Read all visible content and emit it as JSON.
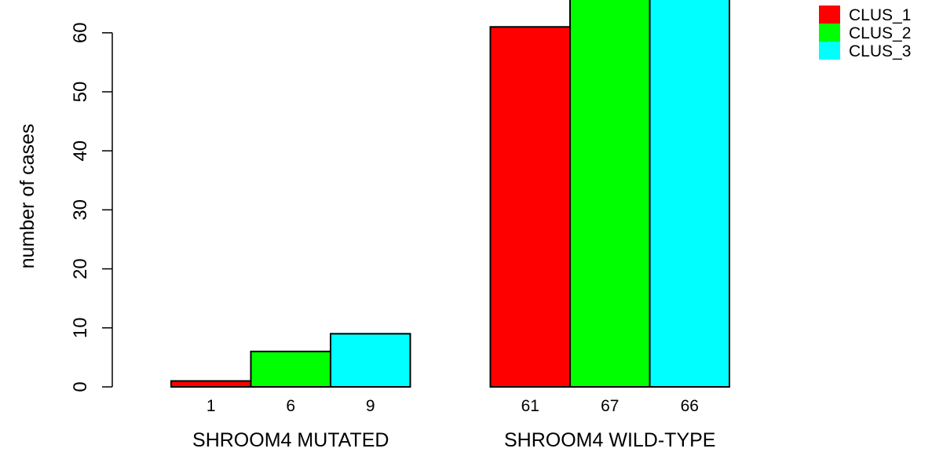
{
  "chart_data": {
    "type": "bar",
    "title": "",
    "xlabel": "",
    "ylabel": "number of cases",
    "ylim": [
      0,
      68
    ],
    "yticks": [
      0,
      10,
      20,
      30,
      40,
      50,
      60
    ],
    "grid": false,
    "legend_position": "top-right",
    "groups": [
      {
        "label": "SHROOM4 MUTATED",
        "values": [
          1,
          6,
          9
        ],
        "value_labels": [
          "1",
          "6",
          "9"
        ]
      },
      {
        "label": "SHROOM4 WILD-TYPE",
        "values": [
          61,
          67,
          66
        ],
        "value_labels": [
          "61",
          "67",
          "66"
        ]
      }
    ],
    "series": [
      {
        "name": "CLUS_1",
        "color": "#ff0000"
      },
      {
        "name": "CLUS_2",
        "color": "#00ff00"
      },
      {
        "name": "CLUS_3",
        "color": "#00ffff"
      }
    ]
  }
}
